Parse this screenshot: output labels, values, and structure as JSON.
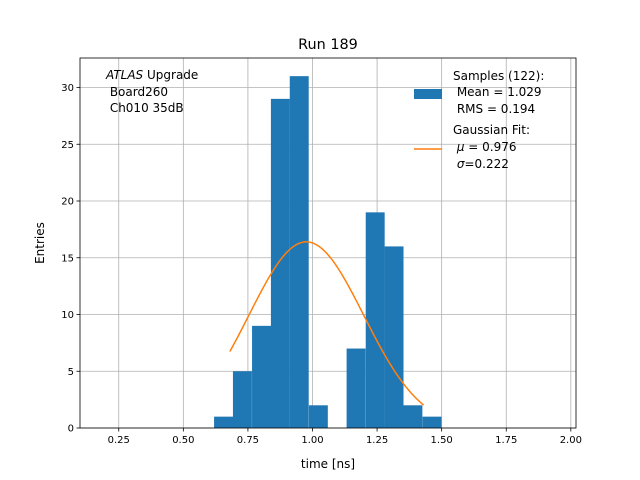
{
  "chart_data": {
    "type": "bar",
    "title": "Run 189",
    "xlabel": "time [ns]",
    "ylabel": "Entries",
    "xlim": [
      0.1,
      2.02
    ],
    "ylim": [
      0,
      32.6
    ],
    "grid": true,
    "x_ticks": [
      0.25,
      0.5,
      0.75,
      1.0,
      1.25,
      1.5,
      1.75,
      2.0
    ],
    "x_tick_labels": [
      "0.25",
      "0.50",
      "0.75",
      "1.00",
      "1.25",
      "1.50",
      "1.75",
      "2.00"
    ],
    "y_ticks": [
      0,
      5,
      10,
      15,
      20,
      25,
      30
    ],
    "y_tick_labels": [
      "0",
      "5",
      "10",
      "15",
      "20",
      "25",
      "30"
    ],
    "bin_width": 0.0733,
    "histogram": {
      "bin_starts": [
        0.619,
        0.692,
        0.766,
        0.839,
        0.912,
        0.986,
        1.059,
        1.132,
        1.206,
        1.279,
        1.352,
        1.426
      ],
      "counts": [
        1,
        5,
        9,
        29,
        31,
        2,
        0,
        7,
        19,
        16,
        2,
        1
      ],
      "color": "#1f77b4"
    },
    "gaussian_fit": {
      "mu": 0.976,
      "sigma": 0.222,
      "amplitude": 16.4,
      "x_range": [
        0.68,
        1.43
      ],
      "color": "#ff7f0e"
    },
    "annotation": {
      "italic": "ATLAS",
      "line1_rest": " Upgrade",
      "line2": " Board260",
      "line3": " Ch010 35dB"
    },
    "legend": {
      "position": "top-right",
      "samples_title": "Samples (122):",
      "samples_mean": " Mean = 1.029",
      "samples_rms": " RMS = 0.194",
      "fit_title": "Gaussian Fit:",
      "fit_mu_symbol": "μ",
      "fit_mu_value": " = 0.976",
      "fit_sigma_symbol": "σ",
      "fit_sigma_value": "=0.222"
    }
  }
}
